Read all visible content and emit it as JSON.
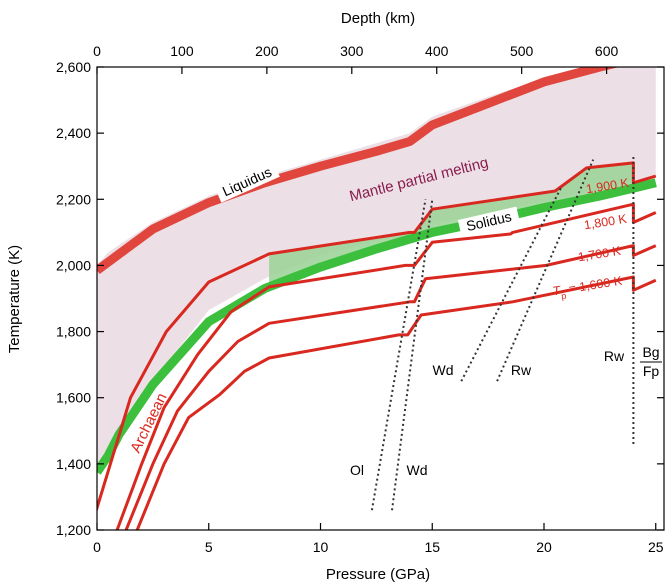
{
  "chart_data": {
    "type": "line",
    "xlabel": "Pressure (GPa)",
    "ylabel": "Temperature (K)",
    "x2label": "Depth (km)",
    "xlim": [
      0,
      25
    ],
    "ylim": [
      1200,
      2600
    ],
    "x2lim": [
      0,
      700
    ],
    "xticks": [
      0,
      5,
      10,
      15,
      20,
      25
    ],
    "yticks": [
      1200,
      1400,
      1600,
      1800,
      2000,
      2200,
      2400,
      2600
    ],
    "x2ticks": [
      0,
      100,
      200,
      300,
      400,
      500,
      600
    ],
    "xtick_labels": [
      "0",
      "5",
      "10",
      "15",
      "20",
      "25"
    ],
    "ytick_labels": [
      "1,200",
      "1,400",
      "1,600",
      "1,800",
      "2,000",
      "2,200",
      "2,400",
      "2,600"
    ],
    "x2tick_labels": [
      "0",
      "100",
      "200",
      "300",
      "400",
      "500",
      "600"
    ],
    "colors": {
      "liquidus": "#e0463e",
      "solidus": "#3cbf3c",
      "adiabat": "#d9281f",
      "melting_fill": "#ece0e6",
      "melt_region": "#9fd49a",
      "boundary": "#333333",
      "mantle_text": "#8a1c4e",
      "adiabat_text": "#d9281f"
    },
    "melting_region": {
      "x": [
        0,
        0.5,
        2.5,
        5,
        7.5,
        10,
        12.5,
        14,
        15,
        17.5,
        20,
        22.5,
        25,
        25,
        22.5,
        20,
        17.5,
        15,
        14,
        12.5,
        10,
        7.5,
        5,
        2.5,
        0.5,
        0
      ],
      "y": [
        2000,
        2040,
        2130,
        2210,
        2270,
        2320,
        2370,
        2400,
        2450,
        2510,
        2565,
        2600,
        2640,
        2270,
        2230,
        2195,
        2160,
        2125,
        2105,
        2075,
        2030,
        1960,
        1865,
        1650,
        1450,
        1380
      ]
    },
    "series": [
      {
        "name": "Liquidus",
        "x": [
          0,
          0.5,
          1,
          2.5,
          5,
          7.5,
          10,
          12.5,
          14,
          15,
          17.5,
          20,
          22.5,
          25
        ],
        "y": [
          1985,
          2010,
          2035,
          2110,
          2190,
          2250,
          2300,
          2345,
          2375,
          2425,
          2490,
          2555,
          2600,
          2640
        ]
      },
      {
        "name": "Solidus",
        "x": [
          0,
          0.5,
          1,
          2.5,
          5,
          7.5,
          10,
          12.5,
          14,
          15,
          17.5,
          20,
          22.5,
          25
        ],
        "y": [
          1375,
          1425,
          1490,
          1640,
          1830,
          1930,
          1995,
          2050,
          2080,
          2100,
          2135,
          2175,
          2210,
          2250
        ]
      },
      {
        "name": "1,900 K",
        "x": [
          7.7,
          14,
          14.2,
          15,
          20.5,
          21.9,
          24,
          24,
          25
        ],
        "y": [
          2035,
          2100,
          2100,
          2170,
          2225,
          2295,
          2310,
          2250,
          2270
        ]
      },
      {
        "name": "1,800 K",
        "x": [
          7.7,
          13.8,
          14.2,
          15,
          18.5,
          18.6,
          24,
          24,
          25
        ],
        "y": [
          1935,
          2000,
          2000,
          2070,
          2095,
          2100,
          2185,
          2130,
          2160
        ]
      },
      {
        "name": "1,700 K",
        "x": [
          7.7,
          14,
          14.2,
          14.7,
          20.1,
          24,
          24,
          25
        ],
        "y": [
          1825,
          1890,
          1890,
          1960,
          2000,
          2060,
          2030,
          2060
        ]
      },
      {
        "name": "T_p = 1,600 K",
        "x": [
          7.7,
          13.5,
          13.9,
          14.5,
          18.6,
          24,
          24,
          25
        ],
        "y": [
          1720,
          1790,
          1790,
          1850,
          1890,
          1965,
          1925,
          1955
        ]
      }
    ],
    "adiabats_deep_x": [
      [
        -0.3,
        0.6,
        1.5,
        3.1,
        5.0,
        7.7
      ],
      [
        0.9,
        2.0,
        3.0,
        4.5,
        6.0,
        7.7
      ],
      [
        1.3,
        2.5,
        3.6,
        5.0,
        6.3,
        7.7
      ],
      [
        1.8,
        3.0,
        4.1,
        5.5,
        6.6,
        7.7
      ]
    ],
    "adiabats_deep_y": [
      [
        1200,
        1400,
        1600,
        1800,
        1950,
        2035
      ],
      [
        1200,
        1400,
        1570,
        1730,
        1860,
        1935
      ],
      [
        1200,
        1400,
        1560,
        1680,
        1770,
        1825
      ],
      [
        1200,
        1400,
        1540,
        1610,
        1680,
        1720
      ]
    ],
    "phase_boundaries": [
      {
        "name": "Ol-Wd 1",
        "x": [
          12.3,
          14.7
        ],
        "y": [
          1260,
          2200
        ]
      },
      {
        "name": "Ol-Wd 2",
        "x": [
          13.2,
          15.0
        ],
        "y": [
          1260,
          2200
        ]
      },
      {
        "name": "Wd-Rw 1",
        "x": [
          16.3,
          20.8
        ],
        "y": [
          1650,
          2240
        ]
      },
      {
        "name": "Wd-Rw 2",
        "x": [
          17.9,
          22.2
        ],
        "y": [
          1650,
          2320
        ]
      },
      {
        "name": "Rw-Bg+Fp",
        "x": [
          24.0,
          24.0
        ],
        "y": [
          1460,
          2330
        ]
      }
    ],
    "labels": {
      "liquidus": "Liquidus",
      "solidus": "Solidus",
      "mantle_partial_melting": "Mantle partial melting",
      "archaean": "Archaean",
      "tp_1900": "1,900 K",
      "tp_1800": "1,800 K",
      "tp_1700": "1,700 K",
      "tp_1600_prefix": "T",
      "tp_1600_sub": "p",
      "tp_1600_suffix": " = 1,600 K",
      "ol": "Ol",
      "wd_low": "Wd",
      "wd_high": "Wd",
      "rw_mid": "Rw",
      "rw_right": "Rw",
      "bg": "Bg",
      "fp": "Fp"
    }
  }
}
